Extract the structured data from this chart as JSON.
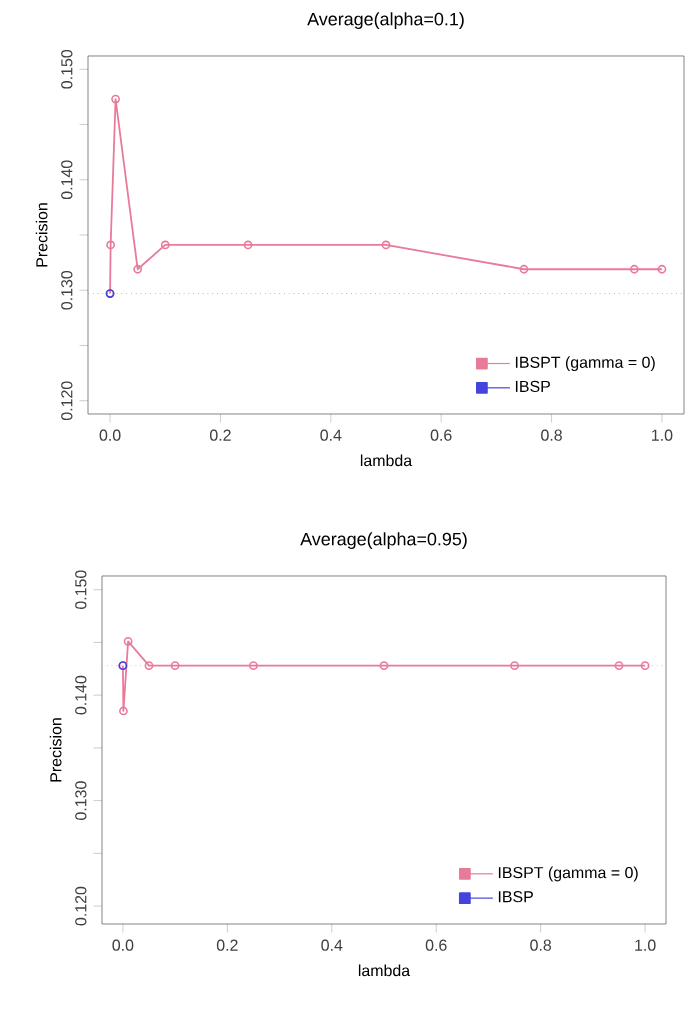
{
  "chart_data": [
    {
      "type": "line",
      "title": "Average(alpha=0.1)",
      "xlabel": "lambda",
      "ylabel": "Precision",
      "series": [
        {
          "name": "IBSPT (gamma = 0)",
          "color": "#e87a9a",
          "x": [
            0,
            0.001,
            0.01,
            0.05,
            0.1,
            0.25,
            0.5,
            0.75,
            0.95,
            1.0
          ],
          "values": [
            0.1297,
            0.1341,
            0.1473,
            0.1319,
            0.1341,
            0.1341,
            0.1341,
            0.1319,
            0.1319,
            0.1319
          ]
        },
        {
          "name": "IBSP",
          "color": "#4444dd",
          "x": [
            0
          ],
          "values": [
            0.1297
          ]
        }
      ],
      "ref_lines": [
        {
          "axis": "y",
          "value": 0.1297,
          "color": "#8888ee",
          "line_style": "dotted"
        }
      ],
      "xlim": [
        -0.04,
        1.04
      ],
      "ylim": [
        0.1188,
        0.1512
      ],
      "xticks": [
        {
          "value": 0,
          "label": "0.0"
        },
        {
          "value": 0.2,
          "label": "0.2"
        },
        {
          "value": 0.4,
          "label": "0.4"
        },
        {
          "value": 0.6,
          "label": "0.6"
        },
        {
          "value": 0.8,
          "label": "0.8"
        },
        {
          "value": 1.0,
          "label": "1.0"
        }
      ],
      "yticks": [
        {
          "value": 0.12,
          "label": "0.120"
        },
        {
          "value": 0.125,
          "label": null
        },
        {
          "value": 0.13,
          "label": "0.130"
        },
        {
          "value": 0.135,
          "label": null
        },
        {
          "value": 0.14,
          "label": "0.140"
        },
        {
          "value": 0.145,
          "label": null
        },
        {
          "value": 0.15,
          "label": "0.150"
        }
      ],
      "legend": "bottom right",
      "marker": "circle",
      "line_style": "solid"
    },
    {
      "type": "line",
      "title": "Average(alpha=0.95)",
      "xlabel": "lambda",
      "ylabel": "Precision",
      "series": [
        {
          "name": "IBSPT (gamma = 0)",
          "color": "#e87a9a",
          "x": [
            0,
            0.001,
            0.01,
            0.05,
            0.1,
            0.25,
            0.5,
            0.75,
            0.95,
            1.0
          ],
          "values": [
            0.1428,
            0.1385,
            0.1451,
            0.1428,
            0.1428,
            0.1428,
            0.1428,
            0.1428,
            0.1428,
            0.1428
          ]
        },
        {
          "name": "IBSP",
          "color": "#4444dd",
          "x": [
            0
          ],
          "values": [
            0.1428
          ]
        }
      ],
      "ref_lines": [
        {
          "axis": "y",
          "value": 0.1428,
          "color": "#aaaadd",
          "line_style": "dotted"
        }
      ],
      "xlim": [
        -0.04,
        1.04
      ],
      "ylim": [
        0.1183,
        0.1513
      ],
      "xticks": [
        {
          "value": 0,
          "label": "0.0"
        },
        {
          "value": 0.2,
          "label": "0.2"
        },
        {
          "value": 0.4,
          "label": "0.4"
        },
        {
          "value": 0.6,
          "label": "0.6"
        },
        {
          "value": 0.8,
          "label": "0.8"
        },
        {
          "value": 1.0,
          "label": "1.0"
        }
      ],
      "yticks": [
        {
          "value": 0.12,
          "label": "0.120"
        },
        {
          "value": 0.125,
          "label": null
        },
        {
          "value": 0.13,
          "label": "0.130"
        },
        {
          "value": 0.135,
          "label": null
        },
        {
          "value": 0.14,
          "label": "0.140"
        },
        {
          "value": 0.145,
          "label": null
        },
        {
          "value": 0.15,
          "label": "0.150"
        }
      ],
      "legend": "bottom right",
      "marker": "circle",
      "line_style": "solid"
    }
  ]
}
